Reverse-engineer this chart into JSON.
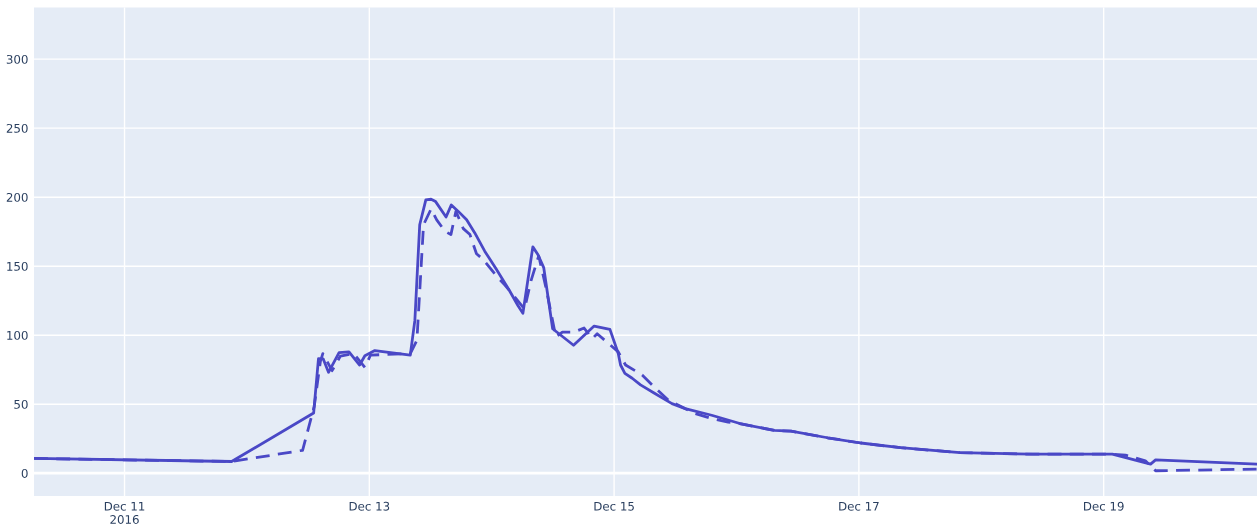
{
  "chart_data": {
    "type": "line",
    "xlim": [
      "2016-12-10T06:15",
      "2016-12-20T06:04"
    ],
    "xticks": [
      {
        "value": "2016-12-11",
        "label": "Dec 11\n2016"
      },
      {
        "value": "2016-12-13",
        "label": "Dec 13"
      },
      {
        "value": "2016-12-15",
        "label": "Dec 15"
      },
      {
        "value": "2016-12-17",
        "label": "Dec 17"
      },
      {
        "value": "2016-12-19",
        "label": "Dec 19"
      }
    ],
    "ylim": [
      -16.5,
      337.5
    ],
    "yticks": [
      0,
      50,
      100,
      150,
      200,
      250,
      300
    ],
    "grid": true,
    "series": [
      {
        "color": "#4a48c6",
        "line_style": "solid",
        "x": [
          "2016-12-10T06:15",
          "2016-12-11T21:00",
          "2016-12-12T13:05",
          "2016-12-12T14:02",
          "2016-12-12T14:57",
          "2016-12-12T16:00",
          "2016-12-12T18:04",
          "2016-12-12T20:01",
          "2016-12-12T22:06",
          "2016-12-12T23:08",
          "2016-12-13T01:05",
          "2016-12-13T08:02",
          "2016-12-13T08:56",
          "2016-12-13T09:53",
          "2016-12-13T11:05",
          "2016-12-13T12:07",
          "2016-12-13T13:00",
          "2016-12-13T15:03",
          "2016-12-13T16:05",
          "2016-12-13T17:27",
          "2016-12-13T19:05",
          "2016-12-13T20:41",
          "2016-12-13T22:38",
          "2016-12-14T00:55",
          "2016-12-14T03:30",
          "2016-12-14T05:08",
          "2016-12-14T06:07",
          "2016-12-14T08:04",
          "2016-12-14T09:03",
          "2016-12-14T10:12",
          "2016-12-14T11:57",
          "2016-12-14T16:03",
          "2016-12-14T20:05",
          "2016-12-14T23:11",
          "2016-12-15T00:49",
          "2016-12-15T01:16",
          "2016-12-15T02:07",
          "2016-12-15T03:33",
          "2016-12-15T05:11",
          "2016-12-15T08:05",
          "2016-12-15T11:21",
          "2016-12-15T13:57",
          "2016-12-15T19:08",
          "2016-12-16T00:40",
          "2016-12-16T07:26",
          "2016-12-16T10:42",
          "2016-12-16T17:51",
          "2016-12-17T00:22",
          "2016-12-17T08:08",
          "2016-12-17T19:49",
          "2016-12-18T10:08",
          "2016-12-19T01:42",
          "2016-12-19T09:12",
          "2016-12-19T10:11",
          "2016-12-20T06:04"
        ],
        "values": [
          10.7,
          8.5,
          43.6,
          83.1,
          82.9,
          73.1,
          87.4,
          87.9,
          78.4,
          85.1,
          88.9,
          85.6,
          110.7,
          180,
          198,
          198.5,
          196.8,
          185.6,
          194.4,
          189.7,
          183.6,
          174.1,
          160.9,
          147.7,
          132.2,
          121.5,
          115.9,
          164,
          158.5,
          149,
          104.7,
          92.7,
          106.6,
          104.2,
          86.7,
          78.4,
          72.4,
          68.8,
          64,
          57.6,
          50.4,
          46.8,
          42,
          36,
          31,
          30.5,
          25.7,
          21.9,
          18.5,
          14.9,
          13.8,
          13.8,
          6.6,
          9.7,
          6.6
        ]
      },
      {
        "color": "#4a48c6",
        "line_style": "dashed",
        "x": [
          "2016-12-10T06:15",
          "2016-12-11T21:00",
          "2016-12-12T10:55",
          "2016-12-12T13:12",
          "2016-12-12T14:24",
          "2016-12-12T14:53",
          "2016-12-12T16:42",
          "2016-12-12T18:20",
          "2016-12-12T20:57",
          "2016-12-12T23:08",
          "2016-12-13T00:14",
          "2016-12-13T08:02",
          "2016-12-13T09:20",
          "2016-12-13T10:38",
          "2016-12-13T12:07",
          "2016-12-13T13:13",
          "2016-12-13T14:51",
          "2016-12-13T16:00",
          "2016-12-13T16:59",
          "2016-12-13T18:26",
          "2016-12-13T19:44",
          "2016-12-13T21:01",
          "2016-12-13T22:19",
          "2016-12-14T00:55",
          "2016-12-14T02:33",
          "2016-12-14T04:29",
          "2016-12-14T06:26",
          "2016-12-14T07:42",
          "2016-12-14T09:13",
          "2016-12-14T10:38",
          "2016-12-14T12:35",
          "2016-12-14T13:52",
          "2016-12-14T16:09",
          "2016-12-14T18:07",
          "2016-12-14T19:44",
          "2016-12-14T20:41",
          "2016-12-15T00:49",
          "2016-12-15T02:15",
          "2016-12-15T05:30",
          "2016-12-15T07:26",
          "2016-12-15T10:41",
          "2016-12-15T15:53",
          "2016-12-15T19:08",
          "2016-12-15T22:22",
          "2016-12-16T00:40",
          "2016-12-16T07:26",
          "2016-12-16T10:42",
          "2016-12-16T17:51",
          "2016-12-17T00:22",
          "2016-12-17T08:08",
          "2016-12-17T19:49",
          "2016-12-18T10:08",
          "2016-12-19T01:42",
          "2016-12-19T04:18",
          "2016-12-19T08:11",
          "2016-12-19T10:11",
          "2016-12-20T06:04"
        ],
        "values": [
          10.7,
          8.5,
          16.6,
          48.5,
          80.8,
          86.7,
          74.3,
          84.9,
          86.7,
          76.7,
          85.6,
          86.7,
          96.3,
          180,
          191.5,
          183.6,
          175.3,
          172.9,
          189.7,
          177.2,
          172.9,
          159,
          154.9,
          143,
          136.5,
          127.9,
          119,
          139.4,
          157.4,
          134.6,
          98.7,
          102.3,
          102.3,
          105.2,
          97.5,
          101.1,
          87.9,
          78.4,
          71.2,
          64,
          52.8,
          43.2,
          39.6,
          37,
          36,
          31,
          30.5,
          25.7,
          21.9,
          18.5,
          14.9,
          13.8,
          13.8,
          13.1,
          9,
          1.8,
          3
        ]
      }
    ]
  }
}
